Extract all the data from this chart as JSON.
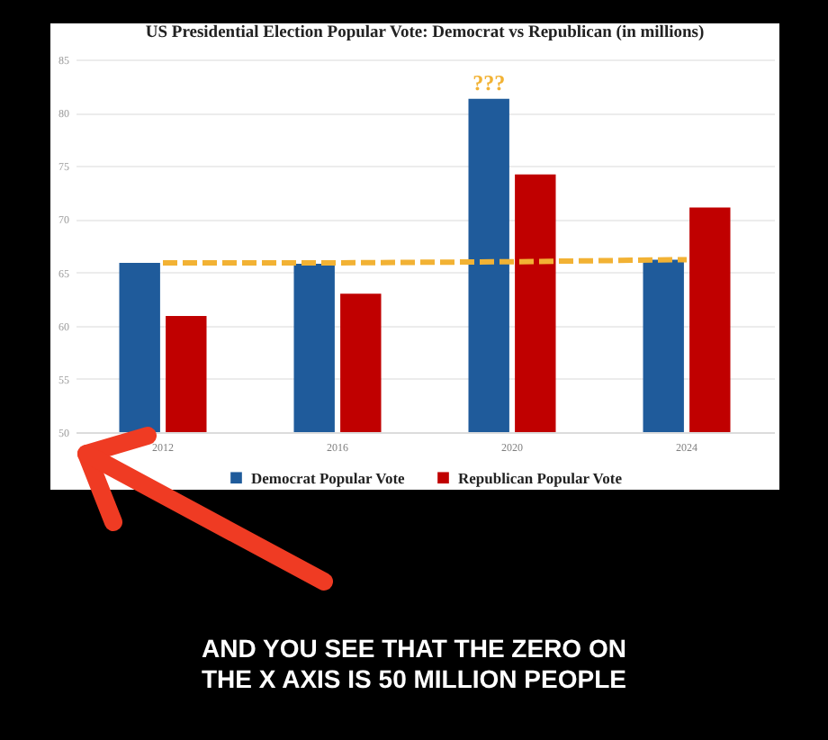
{
  "chart_data": {
    "type": "bar",
    "title": "US Presidential Election Popular Vote: Democrat vs Republican (in millions)",
    "categories": [
      "2012",
      "2016",
      "2020",
      "2024"
    ],
    "series": [
      {
        "name": "Democrat Popular Vote",
        "color": "#1f5b9b",
        "values": [
          65.9,
          65.8,
          81.3,
          66.2
        ]
      },
      {
        "name": "Republican Popular Vote",
        "color": "#c00000",
        "values": [
          60.9,
          63.0,
          74.2,
          71.1
        ]
      },
      {
        "type": "line",
        "values": [
          65.9,
          65.9,
          66.0,
          66.2
        ],
        "color": "#f2b234",
        "line_style": "dashed"
      }
    ],
    "ylim": [
      50,
      85
    ],
    "yticks": [
      50,
      55,
      60,
      65,
      70,
      75,
      80,
      85
    ],
    "grid": "y",
    "legend": "bottom",
    "annotations": [
      {
        "text": "???",
        "x": "2020",
        "y": 81.3
      },
      "AND YOU SEE THAT THE ZERO ON THE X AXIS IS 50 MILLION PEOPLE"
    ]
  }
}
